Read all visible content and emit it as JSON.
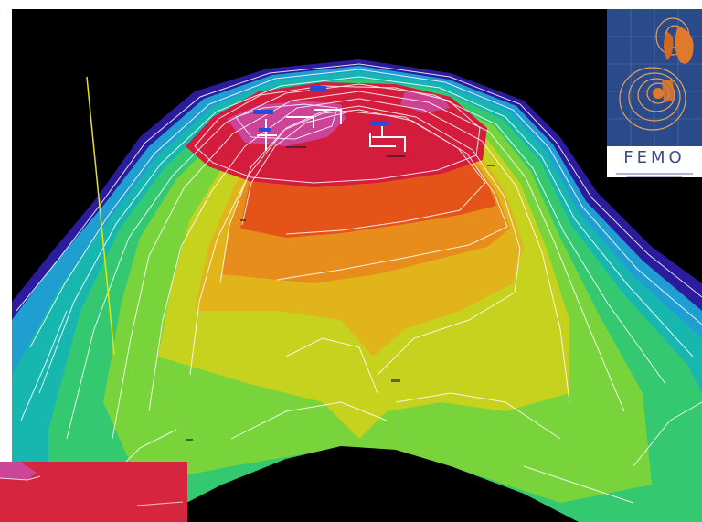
{
  "figure": {
    "kind": "3D shaded-relief seafloor map with contour lines",
    "background_color": "#000000",
    "palette": [
      "#2a1c9c",
      "#1f9ed1",
      "#17b7b0",
      "#34c870",
      "#79d43b",
      "#c6d21e",
      "#e0b41a",
      "#e88c1b",
      "#e45418",
      "#d41c3c",
      "#c94ba8"
    ]
  },
  "logo": {
    "wordmark": "FEMO",
    "colors": {
      "panel": "#2a4a8a",
      "accent": "#e07a2a",
      "text": "#3c4c84"
    }
  }
}
